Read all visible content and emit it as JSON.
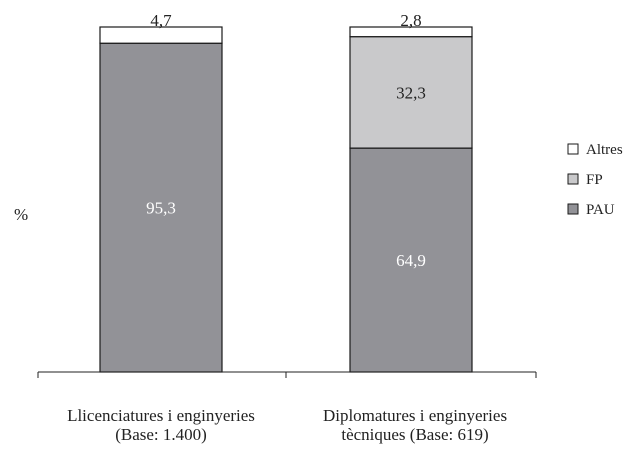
{
  "chart_data": {
    "type": "bar",
    "stacked": true,
    "title": "",
    "xlabel": "",
    "ylabel": "%",
    "ylim": [
      0,
      100
    ],
    "grid": false,
    "legend_position": "right",
    "categories": [
      [
        "Llicenciatures i enginyeries",
        "(Base: 1.400)"
      ],
      [
        "Diplomatures i enginyeries",
        "tècniques (Base: 619)"
      ]
    ],
    "series": [
      {
        "name": "PAU",
        "values": [
          95.3,
          64.9
        ],
        "labels": [
          "95,3",
          "64,9"
        ],
        "color": "#929297",
        "label_color": "#ffffff"
      },
      {
        "name": "FP",
        "values": [
          0,
          32.3
        ],
        "labels": [
          "",
          "32,3"
        ],
        "color": "#c9c9cb",
        "label_color": "#222222"
      },
      {
        "name": "Altres",
        "values": [
          4.7,
          2.8
        ],
        "labels": [
          "4,7",
          "2,8"
        ],
        "color": "#ffffff",
        "label_color": "#222222"
      }
    ],
    "legend_order": [
      "Altres",
      "FP",
      "PAU"
    ]
  }
}
